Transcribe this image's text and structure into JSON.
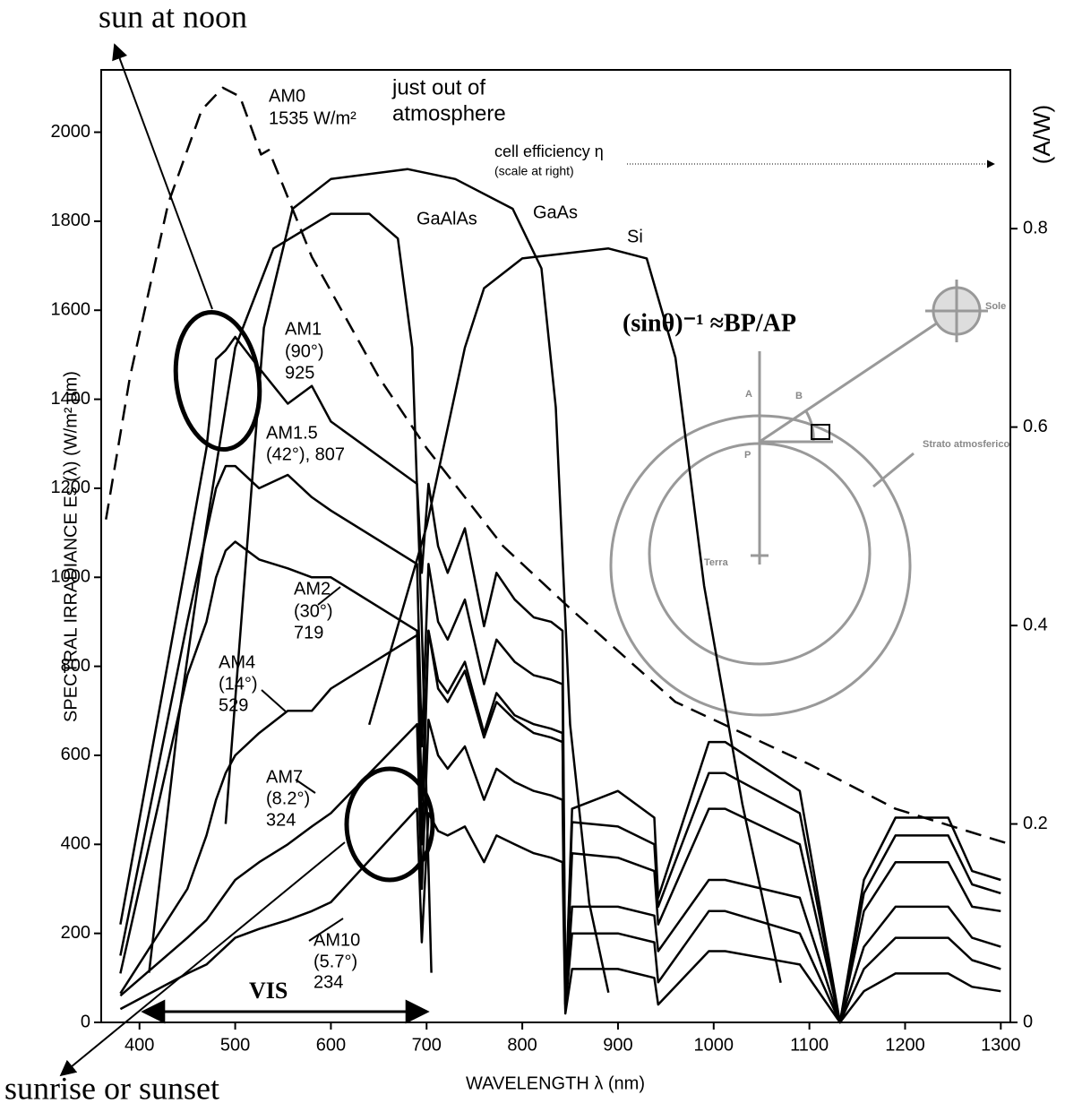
{
  "chart_data": {
    "type": "line",
    "xlabel": "WAVELENGTH  λ   (nm)",
    "ylabel": "SPECTRAL IRRADIANCE  Es (λ)   (W/m² µm)",
    "y2label": "(A/W)",
    "xlim": [
      360,
      1310
    ],
    "ylim": [
      0,
      2140
    ],
    "y2lim": [
      0,
      0.96
    ],
    "xticks": [
      400,
      500,
      600,
      700,
      800,
      900,
      1000,
      1100,
      1200,
      1300
    ],
    "yticks": [
      0,
      200,
      400,
      600,
      800,
      1000,
      1200,
      1400,
      1600,
      1800,
      2000
    ],
    "y2ticks": [
      0,
      0.2,
      0.4,
      0.6,
      0.8
    ],
    "series": [
      {
        "name": "AM0",
        "color": "#000000",
        "dash": "dashed",
        "x": [
          365,
          390,
          430,
          465,
          487,
          505,
          527,
          535,
          580,
          650,
          700,
          780,
          850,
          960,
          1100,
          1190,
          1310
        ],
        "values": [
          1130,
          1450,
          1840,
          2050,
          2100,
          2080,
          1950,
          1960,
          1720,
          1450,
          1290,
          1070,
          930,
          720,
          580,
          480,
          400
        ]
      },
      {
        "name": "AM1",
        "color": "#000000",
        "x": [
          380,
          450,
          470,
          480,
          490,
          500,
          525,
          555,
          580,
          600,
          690,
          695,
          702,
          712,
          722,
          740,
          760,
          773,
          792,
          812,
          830,
          842,
          845,
          852,
          900,
          938,
          942,
          995,
          1012,
          1090,
          1132,
          1157,
          1190,
          1245,
          1270,
          1300
        ],
        "values": [
          220,
          1050,
          1290,
          1490,
          1510,
          1540,
          1470,
          1390,
          1430,
          1350,
          1210,
          1010,
          1210,
          1070,
          1010,
          1110,
          890,
          1010,
          950,
          910,
          900,
          880,
          40,
          480,
          520,
          460,
          280,
          630,
          630,
          520,
          0,
          320,
          460,
          460,
          340,
          320
        ]
      },
      {
        "name": "AM1.5",
        "color": "#000000",
        "x": [
          380,
          450,
          470,
          480,
          490,
          500,
          525,
          555,
          580,
          600,
          690,
          695,
          702,
          712,
          722,
          740,
          760,
          773,
          792,
          812,
          830,
          842,
          845,
          852,
          900,
          938,
          942,
          995,
          1012,
          1090,
          1132,
          1157,
          1190,
          1245,
          1270,
          1300
        ],
        "values": [
          150,
          900,
          1100,
          1200,
          1250,
          1250,
          1200,
          1230,
          1180,
          1150,
          1030,
          620,
          1030,
          900,
          860,
          950,
          760,
          860,
          810,
          780,
          770,
          760,
          40,
          450,
          440,
          400,
          260,
          560,
          560,
          470,
          0,
          290,
          420,
          420,
          310,
          290
        ]
      },
      {
        "name": "AM2",
        "color": "#000000",
        "x": [
          380,
          450,
          470,
          480,
          490,
          500,
          525,
          555,
          580,
          600,
          690,
          695,
          702,
          712,
          722,
          740,
          760,
          773,
          792,
          812,
          830,
          842,
          845,
          852,
          900,
          938,
          942,
          995,
          1012,
          1090,
          1132,
          1157,
          1190,
          1245,
          1270,
          1300
        ],
        "values": [
          110,
          780,
          900,
          1000,
          1060,
          1080,
          1040,
          1020,
          1000,
          1000,
          880,
          500,
          880,
          770,
          740,
          810,
          650,
          740,
          690,
          670,
          660,
          650,
          40,
          380,
          370,
          340,
          220,
          480,
          480,
          400,
          0,
          250,
          360,
          360,
          260,
          250
        ]
      },
      {
        "name": "AM4",
        "color": "#000000",
        "x": [
          380,
          450,
          470,
          480,
          490,
          500,
          525,
          555,
          580,
          600,
          690,
          695,
          702,
          712,
          722,
          740,
          760,
          773,
          792,
          812,
          830,
          842,
          845,
          852,
          900,
          938,
          942,
          995,
          1012,
          1090,
          1132,
          1157,
          1190,
          1245,
          1270,
          1300
        ],
        "values": [
          65,
          300,
          420,
          500,
          560,
          600,
          650,
          700,
          700,
          750,
          870,
          400,
          880,
          750,
          720,
          790,
          640,
          720,
          680,
          650,
          640,
          630,
          40,
          260,
          260,
          240,
          160,
          320,
          320,
          280,
          0,
          170,
          260,
          260,
          190,
          170
        ]
      },
      {
        "name": "AM7",
        "color": "#000000",
        "x": [
          380,
          450,
          470,
          480,
          490,
          500,
          525,
          555,
          580,
          600,
          690,
          695,
          702,
          712,
          722,
          740,
          760,
          773,
          792,
          812,
          830,
          842,
          845,
          852,
          900,
          938,
          942,
          995,
          1012,
          1090,
          1132,
          1157,
          1190,
          1245,
          1270,
          1300
        ],
        "values": [
          60,
          190,
          230,
          260,
          290,
          320,
          360,
          400,
          440,
          470,
          670,
          300,
          680,
          600,
          570,
          620,
          500,
          570,
          540,
          520,
          510,
          500,
          30,
          200,
          200,
          180,
          90,
          250,
          250,
          200,
          0,
          120,
          190,
          190,
          140,
          120
        ]
      },
      {
        "name": "AM10",
        "color": "#000000",
        "x": [
          380,
          450,
          470,
          480,
          490,
          500,
          525,
          555,
          580,
          600,
          690,
          695,
          702,
          712,
          722,
          740,
          760,
          773,
          792,
          812,
          830,
          842,
          845,
          852,
          900,
          938,
          942,
          995,
          1012,
          1090,
          1132,
          1157,
          1190,
          1245,
          1270,
          1300
        ],
        "values": [
          30,
          110,
          130,
          150,
          170,
          190,
          210,
          230,
          250,
          270,
          480,
          180,
          470,
          430,
          420,
          440,
          360,
          420,
          400,
          380,
          370,
          360,
          20,
          120,
          120,
          100,
          40,
          160,
          160,
          130,
          0,
          70,
          110,
          110,
          80,
          70
        ]
      },
      {
        "name": "GaAlAs",
        "color": "#000000",
        "axis": "y2",
        "x": [
          410,
          440,
          470,
          500,
          540,
          600,
          640,
          670,
          685,
          695,
          705
        ],
        "values": [
          0.05,
          0.3,
          0.5,
          0.68,
          0.78,
          0.815,
          0.815,
          0.79,
          0.68,
          0.4,
          0.05
        ]
      },
      {
        "name": "GaAs",
        "color": "#000000",
        "axis": "y2",
        "x": [
          490,
          510,
          530,
          560,
          600,
          680,
          730,
          790,
          820,
          835,
          850,
          870,
          890
        ],
        "values": [
          0.2,
          0.45,
          0.7,
          0.82,
          0.85,
          0.86,
          0.85,
          0.82,
          0.76,
          0.62,
          0.3,
          0.12,
          0.03
        ]
      },
      {
        "name": "Si",
        "color": "#000000",
        "axis": "y2",
        "x": [
          640,
          700,
          740,
          760,
          800,
          890,
          930,
          960,
          990,
          1030,
          1070
        ],
        "values": [
          0.3,
          0.5,
          0.68,
          0.74,
          0.77,
          0.78,
          0.77,
          0.67,
          0.44,
          0.22,
          0.04
        ]
      }
    ],
    "annotations": [
      "1535 W/m²",
      "just out of",
      "atmosphere",
      "cell efficiency η",
      "(scale at right)",
      "(90°)",
      "925",
      "(42°), 807",
      "(30°)",
      "719",
      "(14°)",
      "529",
      "(8.2°)",
      "324",
      "(5.7°)",
      "234",
      "VIS",
      "sun at noon",
      "sunrise or sunset",
      "(sinθ)⁻¹ ≈BP/AP",
      "A",
      "B",
      "P",
      "Terra",
      "Sole",
      "Strato  atmosferico"
    ]
  }
}
